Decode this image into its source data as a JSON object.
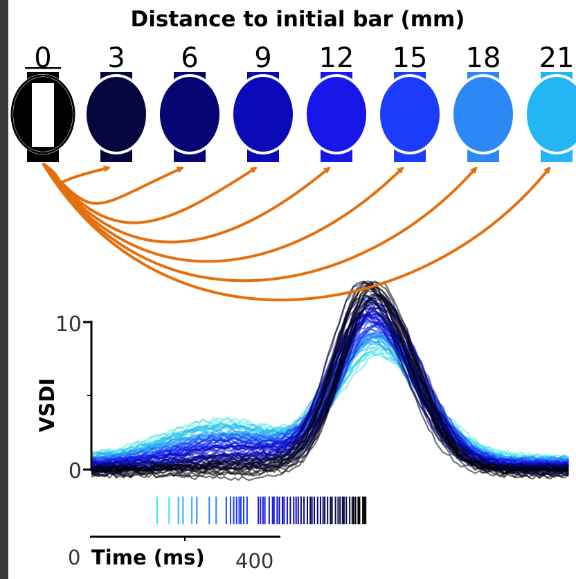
{
  "chart_data": {
    "type": "line",
    "title": "Distance to initial bar (mm)",
    "distances": [
      "0",
      "3",
      "6",
      "9",
      "12",
      "15",
      "18",
      "21"
    ],
    "distance_colors": [
      "#000000",
      "#06063f",
      "#050574",
      "#0a0ab8",
      "#1717ea",
      "#1c3cfb",
      "#2c88f5",
      "#24b6f4"
    ],
    "arrow_color": "#e46f0f",
    "trace_colors": [
      "#000000",
      "#06063f",
      "#050574",
      "#0a0ab8",
      "#1717ea",
      "#1c3cfb",
      "#2c88f5",
      "#24b6f4",
      "#3fe6e0"
    ],
    "ylabel": "VSDI",
    "yticks": [
      "0",
      "10"
    ],
    "ylim": [
      0,
      10
    ],
    "xlabel": "Time (ms)",
    "xticks": [
      "0",
      "400"
    ],
    "xlim": [
      0,
      400
    ]
  }
}
